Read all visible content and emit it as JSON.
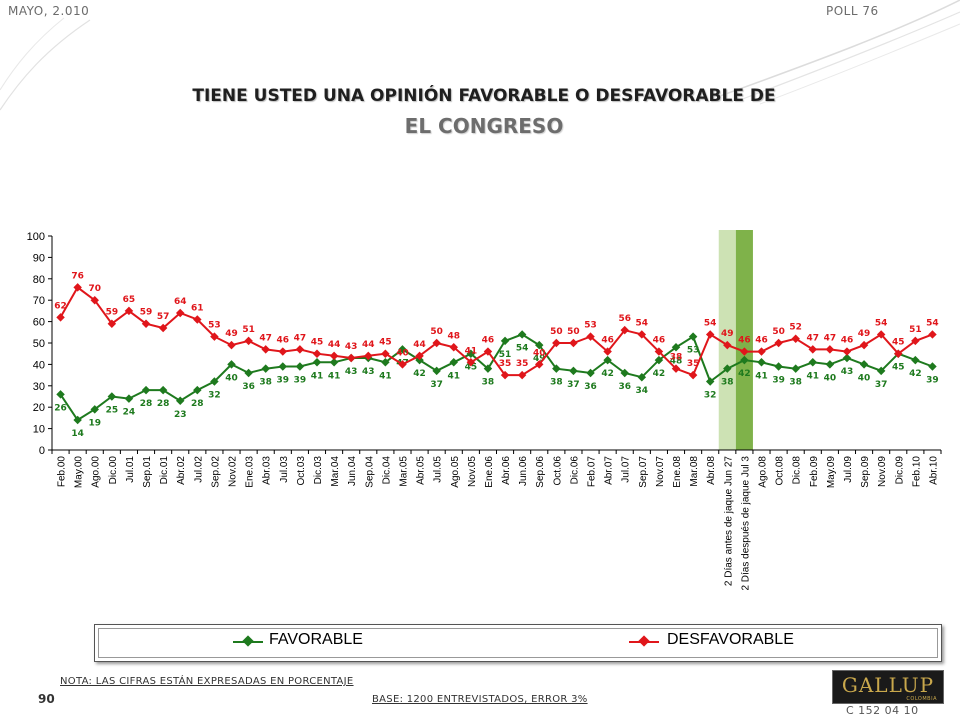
{
  "header": {
    "date": "MAYO, 2.010",
    "poll": "POLL 76"
  },
  "title": {
    "line1": "TIENE USTED UNA OPINIÓN FAVORABLE O DESFAVORABLE DE",
    "line2": "EL CONGRESO"
  },
  "legend": {
    "favorable": "FAVORABLE",
    "desfavorable": "DESFAVORABLE"
  },
  "footer": {
    "nota": "NOTA: LAS CIFRAS ESTÁN EXPRESADAS EN PORCENTAJE",
    "page": "90",
    "base": "BASE: 1200 ENTREVISTADOS, ERROR 3%",
    "logo": "GALLUP",
    "logo_sub": "COLOMBIA",
    "code": "C 152 04 10"
  },
  "colors": {
    "favorable": "#1e7a1e",
    "desfavorable": "#e0161b",
    "band_light": "#cde2b4",
    "band_dark": "#7fb24a"
  },
  "chart_data": {
    "type": "line",
    "title": "",
    "ylim": [
      0,
      100
    ],
    "yticks": [
      0,
      10,
      20,
      30,
      40,
      50,
      60,
      70,
      80,
      90,
      100
    ],
    "grid": false,
    "legend_position": "bottom",
    "categories": [
      "Feb.00",
      "May.00",
      "Ago.00",
      "Dic.00",
      "Jul.01",
      "Sep.01",
      "Dic.01",
      "Abr.02",
      "Jul.02",
      "Sep.02",
      "Nov.02",
      "Ene.03",
      "Abr.03",
      "Jul.03",
      "Oct.03",
      "Dic.03",
      "Mar.04",
      "Jun.04",
      "Sep.04",
      "Dic.04",
      "Mar.05",
      "Abr.05",
      "Jul.05",
      "Ago.05",
      "Nov.05",
      "Ene.06",
      "Abr.06",
      "Jun.06",
      "Sep.06",
      "Oct.06",
      "Dic.06",
      "Feb.07",
      "Abr.07",
      "Jul.07",
      "Sep.07",
      "Nov.07",
      "Ene.08",
      "Mar.08",
      "Abr.08",
      "2 Días antes de jaque Jun 27",
      "2 Días después de jaque Jul 3",
      "Ago.08",
      "Oct.08",
      "Dic.08",
      "Feb.09",
      "May.09",
      "Jul.09",
      "Sep.09",
      "Nov.09",
      "Dic.09",
      "Feb.10",
      "Abr.10"
    ],
    "tick_labels": [
      "Feb.00",
      "May.00",
      "Ago.00",
      "Dic.00",
      "Jul.01",
      "Sep.01",
      "Dic.01",
      "Abr.02",
      "Jul.02",
      "Sep.02",
      "Nov.02",
      "Ene.03",
      "Abr.03",
      "Jul.03",
      "Oct.03",
      "Dic.03",
      "Mar.04",
      "Jun.04",
      "Sep.04",
      "Dic.04",
      "Mar.05",
      "Abr.05",
      "Jul.05",
      "Ago.05",
      "Nov.05",
      "Ene.06",
      "Abr.06",
      "Jun.06",
      "Sep.06",
      "Oct.06",
      "Dic.06",
      "Feb.07",
      "Abr.07",
      "Jul.07",
      "Sep.07",
      "Nov.07",
      "Ene.08",
      "Mar.08",
      "Abr.08",
      "2 Días antes de jaque Jun 27",
      "2 Días después de jaque Jul 3",
      "Ago.08",
      "Oct.08",
      "Dic.08",
      "Feb.09",
      "May.09",
      "Jul.09",
      "Sep.09",
      "Nov.09",
      "Dic.09",
      "Feb.10",
      "Abr.10"
    ],
    "highlight_bands": [
      {
        "category": "2 Días antes de jaque Jun 27",
        "color": "#cde2b4"
      },
      {
        "category": "2 Días después de jaque Jul 3",
        "color": "#7fb24a"
      }
    ],
    "series": [
      {
        "name": "FAVORABLE",
        "color": "#1e7a1e",
        "label_position": "below",
        "values": [
          26,
          14,
          19,
          25,
          24,
          28,
          28,
          23,
          28,
          32,
          40,
          36,
          38,
          39,
          39,
          41,
          41,
          43,
          43,
          41,
          47,
          42,
          37,
          41,
          45,
          38,
          51,
          54,
          49,
          38,
          37,
          36,
          42,
          36,
          34,
          42,
          48,
          53,
          32,
          38,
          42,
          41,
          39,
          38,
          41,
          40,
          43,
          40,
          37,
          45,
          42,
          39
        ]
      },
      {
        "name": "DESFAVORABLE",
        "color": "#e0161b",
        "label_position": "above",
        "values": [
          62,
          76,
          70,
          59,
          65,
          59,
          57,
          64,
          61,
          53,
          49,
          51,
          47,
          46,
          47,
          45,
          44,
          43,
          44,
          45,
          40,
          44,
          50,
          48,
          41,
          46,
          35,
          35,
          40,
          50,
          50,
          53,
          46,
          56,
          54,
          46,
          38,
          35,
          54,
          49,
          46,
          46,
          50,
          52,
          47,
          47,
          46,
          49,
          54,
          45,
          51,
          54
        ]
      }
    ]
  }
}
